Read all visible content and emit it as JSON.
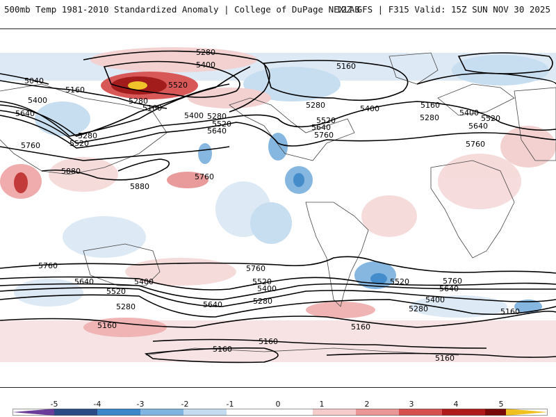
{
  "header": {
    "title_left": "500mb Temp 1981-2010 Standardized Anomaly | College of DuPage NEXLAB",
    "title_right": "12Z GFS | F315 Valid: 15Z SUN NOV 30 2025"
  },
  "contour_labels": [
    {
      "text": "5280"
    },
    {
      "text": "5400"
    },
    {
      "text": "5040"
    },
    {
      "text": "5160"
    },
    {
      "text": "5520"
    },
    {
      "text": "5280"
    },
    {
      "text": "5160"
    },
    {
      "text": "5400"
    },
    {
      "text": "5280"
    },
    {
      "text": "5520"
    },
    {
      "text": "5640"
    },
    {
      "text": "5400"
    },
    {
      "text": "5640"
    },
    {
      "text": "5280"
    },
    {
      "text": "5520"
    },
    {
      "text": "5760"
    },
    {
      "text": "5880"
    },
    {
      "text": "5880"
    },
    {
      "text": "5760"
    },
    {
      "text": "5160"
    },
    {
      "text": "5280"
    },
    {
      "text": "5520"
    },
    {
      "text": "5640"
    },
    {
      "text": "5760"
    },
    {
      "text": "5400"
    },
    {
      "text": "5160"
    },
    {
      "text": "5280"
    },
    {
      "text": "5400"
    },
    {
      "text": "5520"
    },
    {
      "text": "5640"
    },
    {
      "text": "5760"
    },
    {
      "text": "5760"
    },
    {
      "text": "5640"
    },
    {
      "text": "5520"
    },
    {
      "text": "5400"
    },
    {
      "text": "5280"
    },
    {
      "text": "5160"
    },
    {
      "text": "5640"
    },
    {
      "text": "5760"
    },
    {
      "text": "5520"
    },
    {
      "text": "5400"
    },
    {
      "text": "5280"
    },
    {
      "text": "5160"
    },
    {
      "text": "5760"
    },
    {
      "text": "5640"
    },
    {
      "text": "5520"
    },
    {
      "text": "5400"
    },
    {
      "text": "5280"
    },
    {
      "text": "5160"
    },
    {
      "text": "5160"
    },
    {
      "text": "5160"
    },
    {
      "text": "5160"
    }
  ],
  "colorbar": {
    "ticks": [
      "-5",
      "-4",
      "-3",
      "-2",
      "-1",
      "0",
      "1",
      "2",
      "3",
      "4",
      "5"
    ],
    "colors": {
      "neg5": "#6a3d9a",
      "neg4": "#2b4a86",
      "neg3": "#3a86c8",
      "neg2": "#7fb4e0",
      "neg1": "#c5dcf0",
      "zero": "#ffffff",
      "pos1": "#f4cccc",
      "pos2": "#e89696",
      "pos3": "#d65050",
      "pos4": "#b01a1a",
      "pos5": "#7a0a0a",
      "tip": "#f0c020"
    }
  }
}
